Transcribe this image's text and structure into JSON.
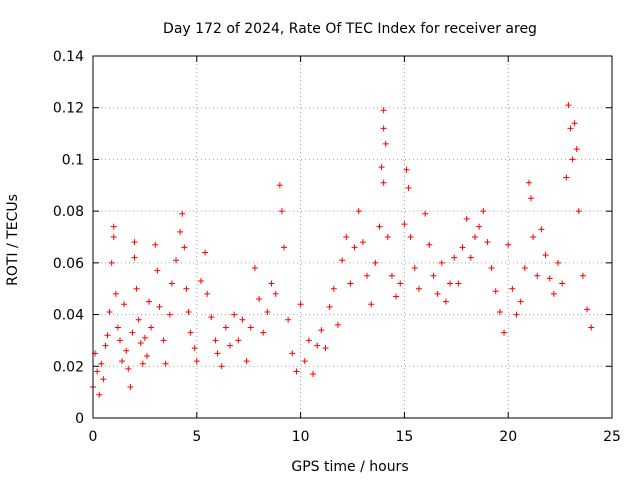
{
  "chart_data": {
    "type": "scatter",
    "title": "Day 172 of 2024, Rate Of TEC Index for receiver areg",
    "xlabel": "GPS time / hours",
    "ylabel": "ROTI / TECUs",
    "xlim": [
      0,
      25
    ],
    "ylim": [
      0,
      0.14
    ],
    "xticks": [
      0,
      5,
      10,
      15,
      20,
      25
    ],
    "xtick_labels": [
      "0",
      "5",
      "10",
      "15",
      "20",
      "25"
    ],
    "yticks": [
      0,
      0.02,
      0.04,
      0.06,
      0.08,
      0.1,
      0.12,
      0.14
    ],
    "ytick_labels": [
      "0",
      "0.02",
      "0.04",
      "0.06",
      "0.08",
      "0.1",
      "0.12",
      "0.14"
    ],
    "grid": true,
    "marker": "+",
    "color": "#ff0000",
    "series": [
      {
        "points": [
          [
            0.0,
            0.012
          ],
          [
            0.1,
            0.025
          ],
          [
            0.2,
            0.018
          ],
          [
            0.3,
            0.009
          ],
          [
            0.4,
            0.021
          ],
          [
            0.5,
            0.015
          ],
          [
            0.6,
            0.028
          ],
          [
            0.7,
            0.032
          ],
          [
            0.8,
            0.041
          ],
          [
            0.9,
            0.06
          ],
          [
            1.0,
            0.074
          ],
          [
            1.0,
            0.07
          ],
          [
            1.1,
            0.048
          ],
          [
            1.2,
            0.035
          ],
          [
            1.3,
            0.03
          ],
          [
            1.4,
            0.022
          ],
          [
            1.5,
            0.044
          ],
          [
            1.6,
            0.026
          ],
          [
            1.7,
            0.019
          ],
          [
            1.8,
            0.012
          ],
          [
            1.9,
            0.033
          ],
          [
            2.0,
            0.068
          ],
          [
            2.0,
            0.062
          ],
          [
            2.1,
            0.05
          ],
          [
            2.2,
            0.038
          ],
          [
            2.3,
            0.029
          ],
          [
            2.4,
            0.021
          ],
          [
            2.5,
            0.031
          ],
          [
            2.6,
            0.024
          ],
          [
            2.7,
            0.045
          ],
          [
            2.8,
            0.035
          ],
          [
            3.0,
            0.067
          ],
          [
            3.1,
            0.057
          ],
          [
            3.2,
            0.043
          ],
          [
            3.4,
            0.03
          ],
          [
            3.5,
            0.021
          ],
          [
            3.7,
            0.04
          ],
          [
            3.8,
            0.052
          ],
          [
            4.0,
            0.061
          ],
          [
            4.2,
            0.072
          ],
          [
            4.3,
            0.079
          ],
          [
            4.4,
            0.066
          ],
          [
            4.5,
            0.05
          ],
          [
            4.6,
            0.041
          ],
          [
            4.7,
            0.033
          ],
          [
            4.9,
            0.027
          ],
          [
            5.0,
            0.022
          ],
          [
            5.2,
            0.053
          ],
          [
            5.4,
            0.064
          ],
          [
            5.5,
            0.048
          ],
          [
            5.7,
            0.039
          ],
          [
            5.9,
            0.03
          ],
          [
            6.0,
            0.025
          ],
          [
            6.2,
            0.02
          ],
          [
            6.4,
            0.035
          ],
          [
            6.6,
            0.028
          ],
          [
            6.8,
            0.04
          ],
          [
            7.0,
            0.03
          ],
          [
            7.2,
            0.038
          ],
          [
            7.4,
            0.022
          ],
          [
            7.6,
            0.035
          ],
          [
            7.8,
            0.058
          ],
          [
            8.0,
            0.046
          ],
          [
            8.2,
            0.033
          ],
          [
            8.4,
            0.041
          ],
          [
            8.6,
            0.052
          ],
          [
            8.8,
            0.048
          ],
          [
            9.0,
            0.09
          ],
          [
            9.1,
            0.08
          ],
          [
            9.2,
            0.066
          ],
          [
            9.4,
            0.038
          ],
          [
            9.6,
            0.025
          ],
          [
            9.8,
            0.018
          ],
          [
            10.0,
            0.044
          ],
          [
            10.2,
            0.022
          ],
          [
            10.4,
            0.03
          ],
          [
            10.6,
            0.017
          ],
          [
            10.8,
            0.028
          ],
          [
            11.0,
            0.034
          ],
          [
            11.2,
            0.027
          ],
          [
            11.4,
            0.043
          ],
          [
            11.6,
            0.05
          ],
          [
            11.8,
            0.036
          ],
          [
            12.0,
            0.061
          ],
          [
            12.2,
            0.07
          ],
          [
            12.4,
            0.052
          ],
          [
            12.6,
            0.066
          ],
          [
            12.8,
            0.08
          ],
          [
            13.0,
            0.068
          ],
          [
            13.2,
            0.055
          ],
          [
            13.4,
            0.044
          ],
          [
            13.6,
            0.06
          ],
          [
            13.8,
            0.074
          ],
          [
            13.9,
            0.097
          ],
          [
            14.0,
            0.119
          ],
          [
            14.0,
            0.112
          ],
          [
            14.1,
            0.106
          ],
          [
            14.0,
            0.091
          ],
          [
            14.2,
            0.07
          ],
          [
            14.4,
            0.055
          ],
          [
            14.6,
            0.047
          ],
          [
            14.8,
            0.052
          ],
          [
            15.0,
            0.075
          ],
          [
            15.1,
            0.096
          ],
          [
            15.2,
            0.089
          ],
          [
            15.3,
            0.07
          ],
          [
            15.5,
            0.058
          ],
          [
            15.7,
            0.05
          ],
          [
            16.0,
            0.079
          ],
          [
            16.2,
            0.067
          ],
          [
            16.4,
            0.055
          ],
          [
            16.6,
            0.048
          ],
          [
            16.8,
            0.06
          ],
          [
            17.0,
            0.045
          ],
          [
            17.2,
            0.052
          ],
          [
            17.4,
            0.062
          ],
          [
            17.6,
            0.052
          ],
          [
            17.8,
            0.066
          ],
          [
            18.0,
            0.077
          ],
          [
            18.2,
            0.062
          ],
          [
            18.4,
            0.07
          ],
          [
            18.6,
            0.074
          ],
          [
            18.8,
            0.08
          ],
          [
            19.0,
            0.068
          ],
          [
            19.2,
            0.058
          ],
          [
            19.4,
            0.049
          ],
          [
            19.6,
            0.041
          ],
          [
            19.8,
            0.033
          ],
          [
            20.0,
            0.067
          ],
          [
            20.2,
            0.05
          ],
          [
            20.4,
            0.04
          ],
          [
            20.6,
            0.045
          ],
          [
            20.8,
            0.058
          ],
          [
            21.0,
            0.091
          ],
          [
            21.1,
            0.085
          ],
          [
            21.2,
            0.07
          ],
          [
            21.4,
            0.055
          ],
          [
            21.6,
            0.073
          ],
          [
            21.8,
            0.063
          ],
          [
            22.0,
            0.054
          ],
          [
            22.2,
            0.048
          ],
          [
            22.4,
            0.06
          ],
          [
            22.6,
            0.052
          ],
          [
            22.8,
            0.093
          ],
          [
            22.9,
            0.121
          ],
          [
            23.0,
            0.112
          ],
          [
            23.1,
            0.1
          ],
          [
            23.2,
            0.114
          ],
          [
            23.3,
            0.104
          ],
          [
            23.4,
            0.08
          ],
          [
            23.6,
            0.055
          ],
          [
            23.8,
            0.042
          ],
          [
            24.0,
            0.035
          ]
        ]
      }
    ]
  }
}
